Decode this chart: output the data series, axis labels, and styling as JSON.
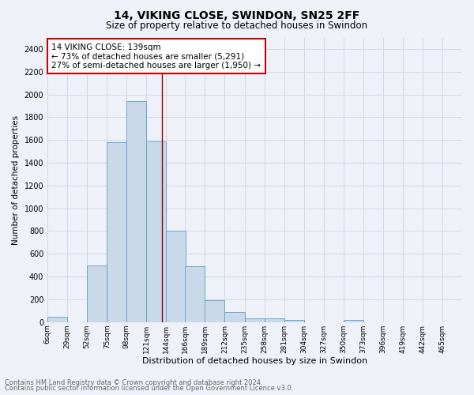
{
  "title1": "14, VIKING CLOSE, SWINDON, SN25 2FF",
  "title2": "Size of property relative to detached houses in Swindon",
  "xlabel": "Distribution of detached houses by size in Swindon",
  "ylabel": "Number of detached properties",
  "footnote1": "Contains HM Land Registry data © Crown copyright and database right 2024.",
  "footnote2": "Contains public sector information licensed under the Open Government Licence v3.0.",
  "annotation_line1": "14 VIKING CLOSE: 139sqm",
  "annotation_line2": "← 73% of detached houses are smaller (5,291)",
  "annotation_line3": "27% of semi-detached houses are larger (1,950) →",
  "bar_color": "#c9d9ea",
  "bar_edge_color": "#5a9ec9",
  "vline_color": "#8b0000",
  "vline_x": 139,
  "categories": [
    "6sqm",
    "29sqm",
    "52sqm",
    "75sqm",
    "98sqm",
    "121sqm",
    "144sqm",
    "166sqm",
    "189sqm",
    "212sqm",
    "235sqm",
    "258sqm",
    "281sqm",
    "304sqm",
    "327sqm",
    "350sqm",
    "373sqm",
    "396sqm",
    "419sqm",
    "442sqm",
    "465sqm"
  ],
  "bin_edges": [
    6,
    29,
    52,
    75,
    98,
    121,
    144,
    166,
    189,
    212,
    235,
    258,
    281,
    304,
    327,
    350,
    373,
    396,
    419,
    442,
    465
  ],
  "values": [
    50,
    0,
    500,
    1580,
    1940,
    1590,
    800,
    490,
    195,
    90,
    35,
    30,
    20,
    0,
    0,
    20,
    0,
    0,
    0,
    0,
    0
  ],
  "ylim": [
    0,
    2500
  ],
  "yticks": [
    0,
    200,
    400,
    600,
    800,
    1000,
    1200,
    1400,
    1600,
    1800,
    2000,
    2200,
    2400
  ],
  "annotation_box_color": "white",
  "annotation_box_edge": "#cc0000",
  "grid_color": "#d0d8e8",
  "bg_color": "#eef2f8"
}
